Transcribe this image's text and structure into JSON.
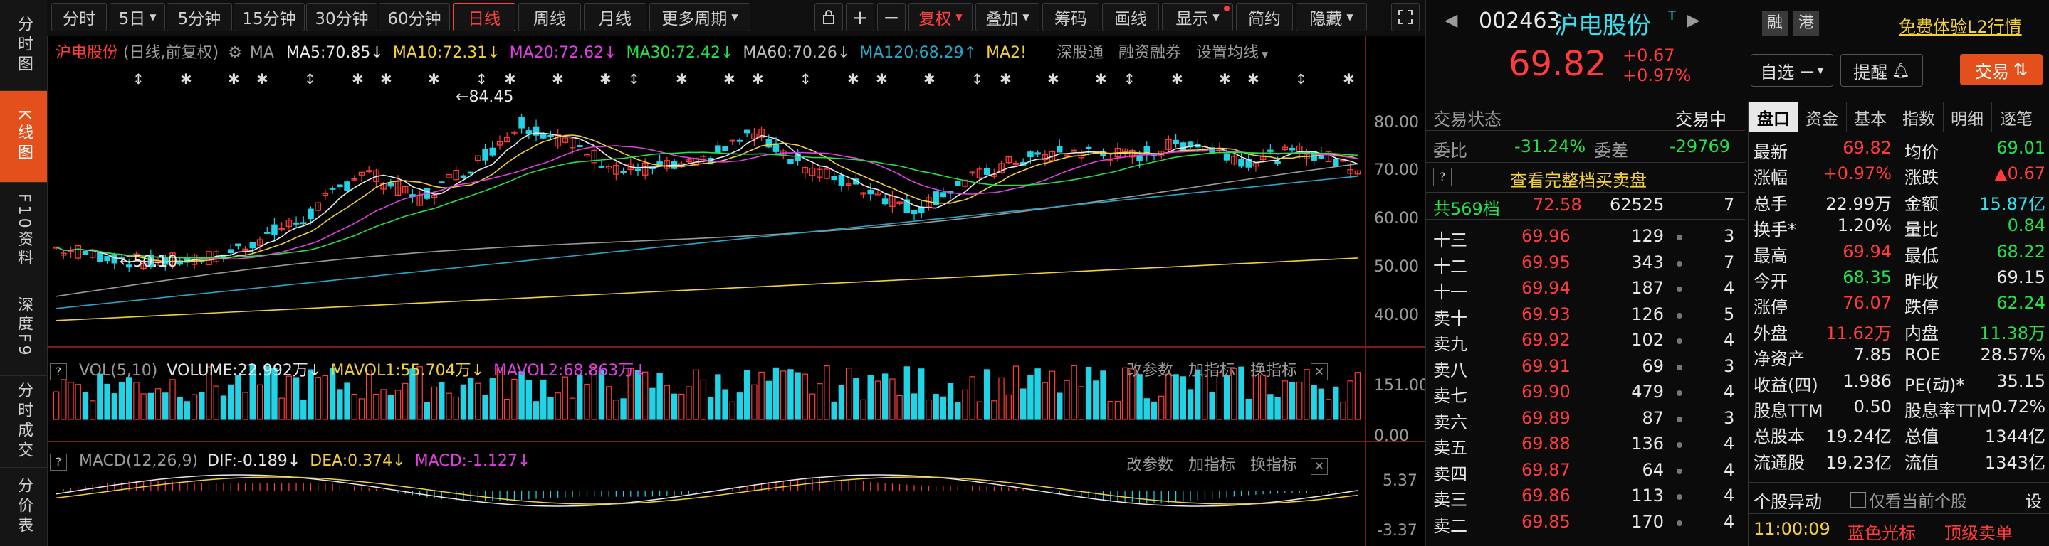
{
  "left_nav": [
    {
      "label": "分时图",
      "active": false
    },
    {
      "label": "K线图",
      "active": true
    },
    {
      "label": "F10资料",
      "active": false
    },
    {
      "label": "深度F9",
      "active": false
    },
    {
      "label": "分时成交",
      "active": false
    },
    {
      "label": "分价表",
      "active": false
    }
  ],
  "toolbar": {
    "periods": [
      "分时",
      "5日",
      "5分钟",
      "15分钟",
      "30分钟",
      "60分钟",
      "日线",
      "周线",
      "月线",
      "更多周期"
    ],
    "active_period": "日线",
    "tools": [
      "复权",
      "叠加",
      "筹码",
      "画线",
      "显示",
      "简约",
      "隐藏"
    ]
  },
  "main_indicator": {
    "name": "沪电股份",
    "mode": "(日线,前复权)",
    "ma_label": "MA",
    "ma5": "MA5:70.85",
    "ma10": "MA10:72.31",
    "ma20": "MA20:72.62",
    "ma30": "MA30:72.42",
    "ma60": "MA60:70.26",
    "ma120": "MA120:68.29",
    "ma250": "MA2!",
    "links": [
      "深股通",
      "融资融券",
      "设置均线"
    ],
    "high_label": "84.45",
    "low_label": "50.10",
    "y_ticks": [
      "80.00",
      "70.00",
      "60.00",
      "50.00",
      "40.00"
    ]
  },
  "vol_indicator": {
    "name": "VOL(5,10)",
    "volume": "VOLUME:22.992万",
    "mavol1": "MAVOL1:55.704万",
    "mavol2": "MAVOL2:68.863万",
    "actions": [
      "改参数",
      "加指标",
      "换指标"
    ],
    "y_ticks": [
      "151.00",
      "0.00"
    ]
  },
  "macd_indicator": {
    "name": "MACD(12,26,9)",
    "dif": "DIF:-0.189",
    "dea": "DEA:0.374",
    "macd": "MACD:-1.127",
    "actions": [
      "改参数",
      "加指标",
      "换指标"
    ],
    "y_ticks": [
      "5.37",
      "-3.37"
    ]
  },
  "quote": {
    "code": "002463",
    "name": "沪电股份",
    "tags": [
      "融",
      "港"
    ],
    "promo": "免费体验L2行情",
    "price": "69.82",
    "change": "+0.67",
    "change_pct": "+0.97%",
    "buttons": {
      "watch": "自选",
      "alert": "提醒",
      "trade": "交易"
    },
    "status_label": "交易状态",
    "status_value": "交易中",
    "wb_label": "委比",
    "wb_value": "-31.24%",
    "wc_label": "委差",
    "wc_value": "-29769",
    "full_book": "查看完整档买卖盘",
    "total_label": "共569档",
    "total_price": "72.58",
    "total_vol": "62525",
    "total_cnt": "7",
    "asks": [
      {
        "label": "十三",
        "price": "69.96",
        "vol": "129",
        "cnt": "3"
      },
      {
        "label": "十二",
        "price": "69.95",
        "vol": "343",
        "cnt": "7"
      },
      {
        "label": "十一",
        "price": "69.94",
        "vol": "187",
        "cnt": "4"
      },
      {
        "label": "卖十",
        "price": "69.93",
        "vol": "126",
        "cnt": "5"
      },
      {
        "label": "卖九",
        "price": "69.92",
        "vol": "102",
        "cnt": "4"
      },
      {
        "label": "卖八",
        "price": "69.91",
        "vol": "69",
        "cnt": "3"
      },
      {
        "label": "卖七",
        "price": "69.90",
        "vol": "479",
        "cnt": "4"
      },
      {
        "label": "卖六",
        "price": "69.89",
        "vol": "87",
        "cnt": "3"
      },
      {
        "label": "卖五",
        "price": "69.88",
        "vol": "136",
        "cnt": "4"
      },
      {
        "label": "卖四",
        "price": "69.87",
        "vol": "64",
        "cnt": "4"
      },
      {
        "label": "卖三",
        "price": "69.86",
        "vol": "113",
        "cnt": "4"
      },
      {
        "label": "卖二",
        "price": "69.85",
        "vol": "170",
        "cnt": "4"
      }
    ],
    "tabs": [
      "盘口",
      "资金",
      "基本",
      "指数",
      "明细",
      "逐笔"
    ],
    "stats": [
      {
        "k1": "最新",
        "v1": "69.82",
        "c1": "red",
        "k2": "均价",
        "v2": "69.01",
        "c2": "green"
      },
      {
        "k1": "涨幅",
        "v1": "+0.97%",
        "c1": "red",
        "k2": "涨跌",
        "v2": "▲0.67",
        "c2": "red"
      },
      {
        "k1": "总手",
        "v1": "22.99万",
        "c1": "white",
        "k2": "金额",
        "v2": "15.87亿",
        "c2": "cyan"
      },
      {
        "k1": "换手*",
        "v1": "1.20%",
        "c1": "white",
        "k2": "量比",
        "v2": "0.84",
        "c2": "green"
      },
      {
        "k1": "最高",
        "v1": "69.94",
        "c1": "red",
        "k2": "最低",
        "v2": "68.22",
        "c2": "green"
      },
      {
        "k1": "今开",
        "v1": "68.35",
        "c1": "green",
        "k2": "昨收",
        "v2": "69.15",
        "c2": "white"
      },
      {
        "k1": "涨停",
        "v1": "76.07",
        "c1": "red",
        "k2": "跌停",
        "v2": "62.24",
        "c2": "green"
      },
      {
        "k1": "外盘",
        "v1": "11.62万",
        "c1": "red",
        "k2": "内盘",
        "v2": "11.38万",
        "c2": "green"
      },
      {
        "k1": "净资产",
        "v1": "7.85",
        "c1": "white",
        "k2": "ROE",
        "v2": "28.57%",
        "c2": "white"
      },
      {
        "k1": "收益(四)",
        "v1": "1.986",
        "c1": "white",
        "k2": "PE(动)*",
        "v2": "35.15",
        "c2": "white"
      },
      {
        "k1": "股息TTM",
        "v1": "0.50",
        "c1": "white",
        "k2": "股息率TTM",
        "v2": "0.72%",
        "c2": "white"
      },
      {
        "k1": "总股本",
        "v1": "19.24亿",
        "c1": "white",
        "k2": "总值",
        "v2": "1344亿",
        "c2": "white"
      },
      {
        "k1": "流通股",
        "v1": "19.23亿",
        "c1": "white",
        "k2": "流值",
        "v2": "1343亿",
        "c2": "white"
      }
    ],
    "alert_title": "个股异动",
    "alert_checkbox": "仅看当前个股",
    "alert_setting": "设",
    "alert_time": "11:00:09",
    "alert_type": "蓝色光标",
    "alert_event": "顶级卖单"
  },
  "colors": {
    "up": "#ff3b3b",
    "down": "#22d3e6",
    "ma5": "#e8e8e8",
    "ma10": "#f1d03a",
    "ma20": "#e040e0",
    "ma30": "#25e04b",
    "ma60": "#9a9a9a",
    "ma120": "#2aa6c8",
    "ma250": "#f1d03a",
    "accent": "#e3501b"
  }
}
